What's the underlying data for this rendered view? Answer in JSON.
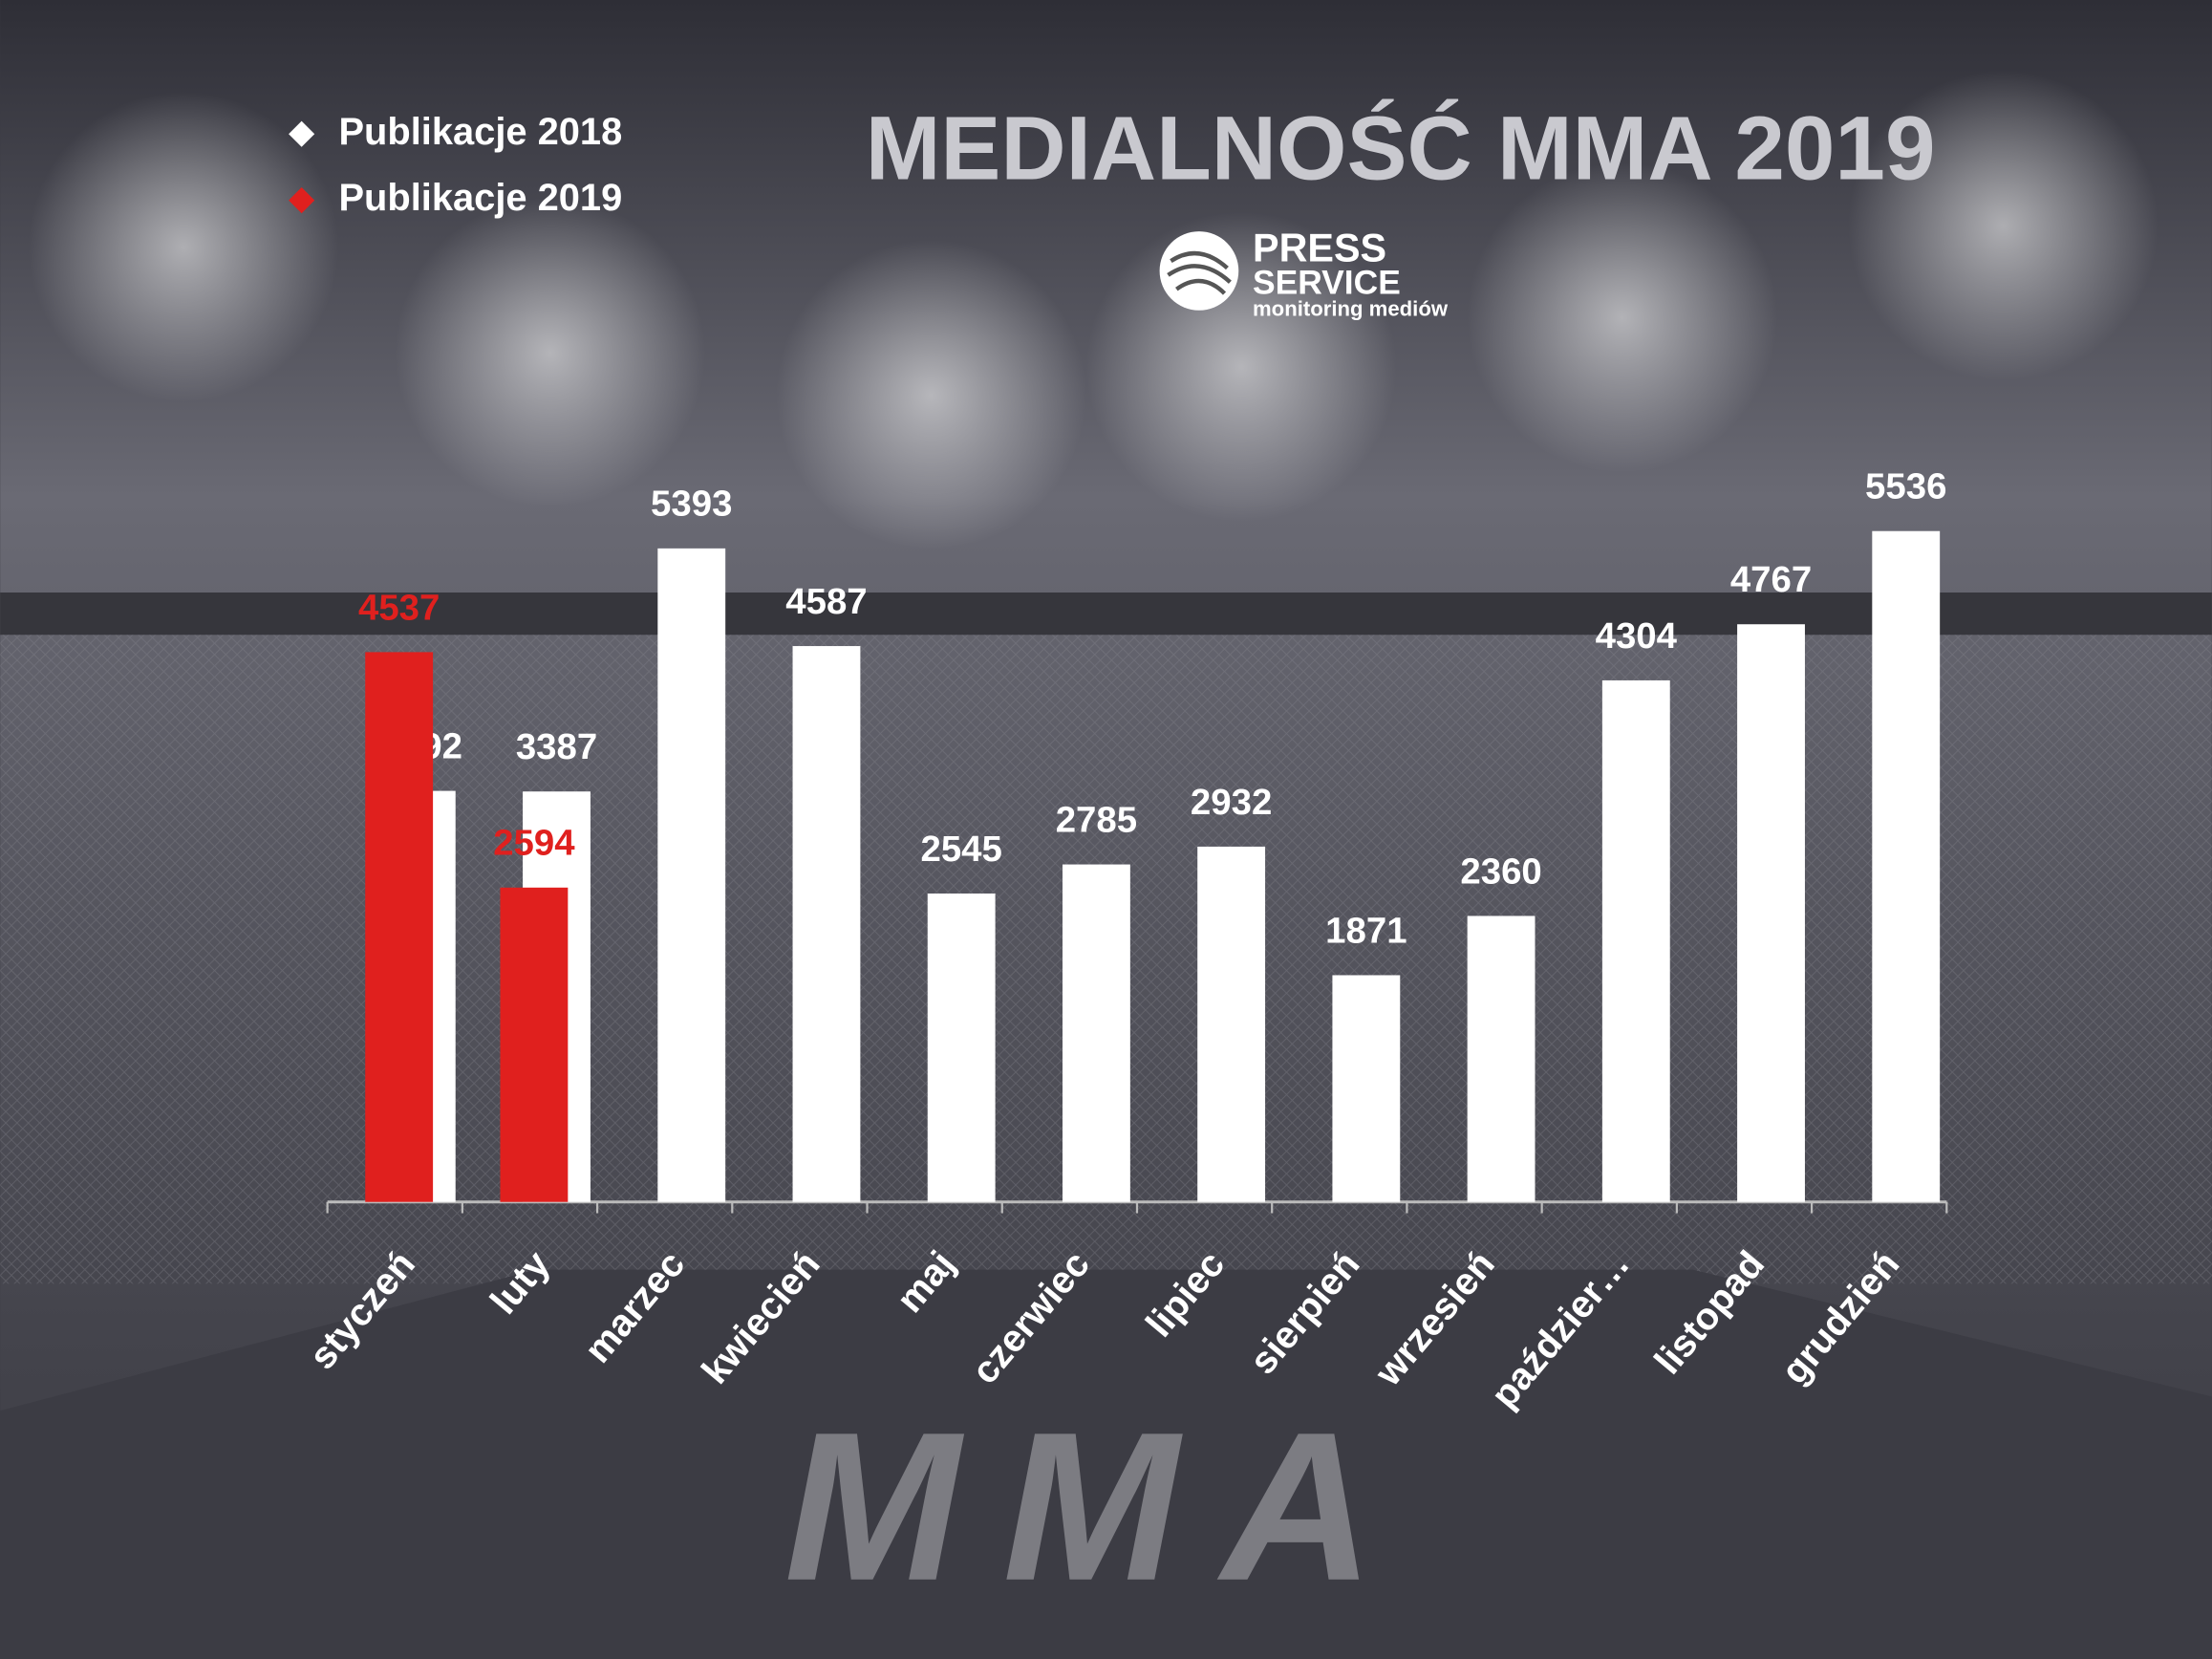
{
  "chart_data": {
    "type": "bar",
    "title": "MEDIALNOŚĆ MMA 2019",
    "logo": {
      "line1": "PRESS",
      "line2": "SERVICE",
      "tagline": "monitoring mediów"
    },
    "background_text": "MMA",
    "categories": [
      "styczeń",
      "luty",
      "marzec",
      "kwiecień",
      "maj",
      "czerwiec",
      "lipiec",
      "sierpień",
      "wrzesień",
      "paździer…",
      "listopad",
      "grudzień"
    ],
    "series": [
      {
        "name": "Publikacje 2018",
        "color": "#ffffff",
        "values": [
          3392,
          3387,
          5393,
          4587,
          2545,
          2785,
          2932,
          1871,
          2360,
          4304,
          4767,
          5536
        ]
      },
      {
        "name": "Publikacje 2019",
        "color": "#e0201e",
        "values": [
          4537,
          2594,
          null,
          null,
          null,
          null,
          null,
          null,
          null,
          null,
          null,
          null
        ]
      }
    ],
    "legend": "top-left",
    "grid": false
  }
}
